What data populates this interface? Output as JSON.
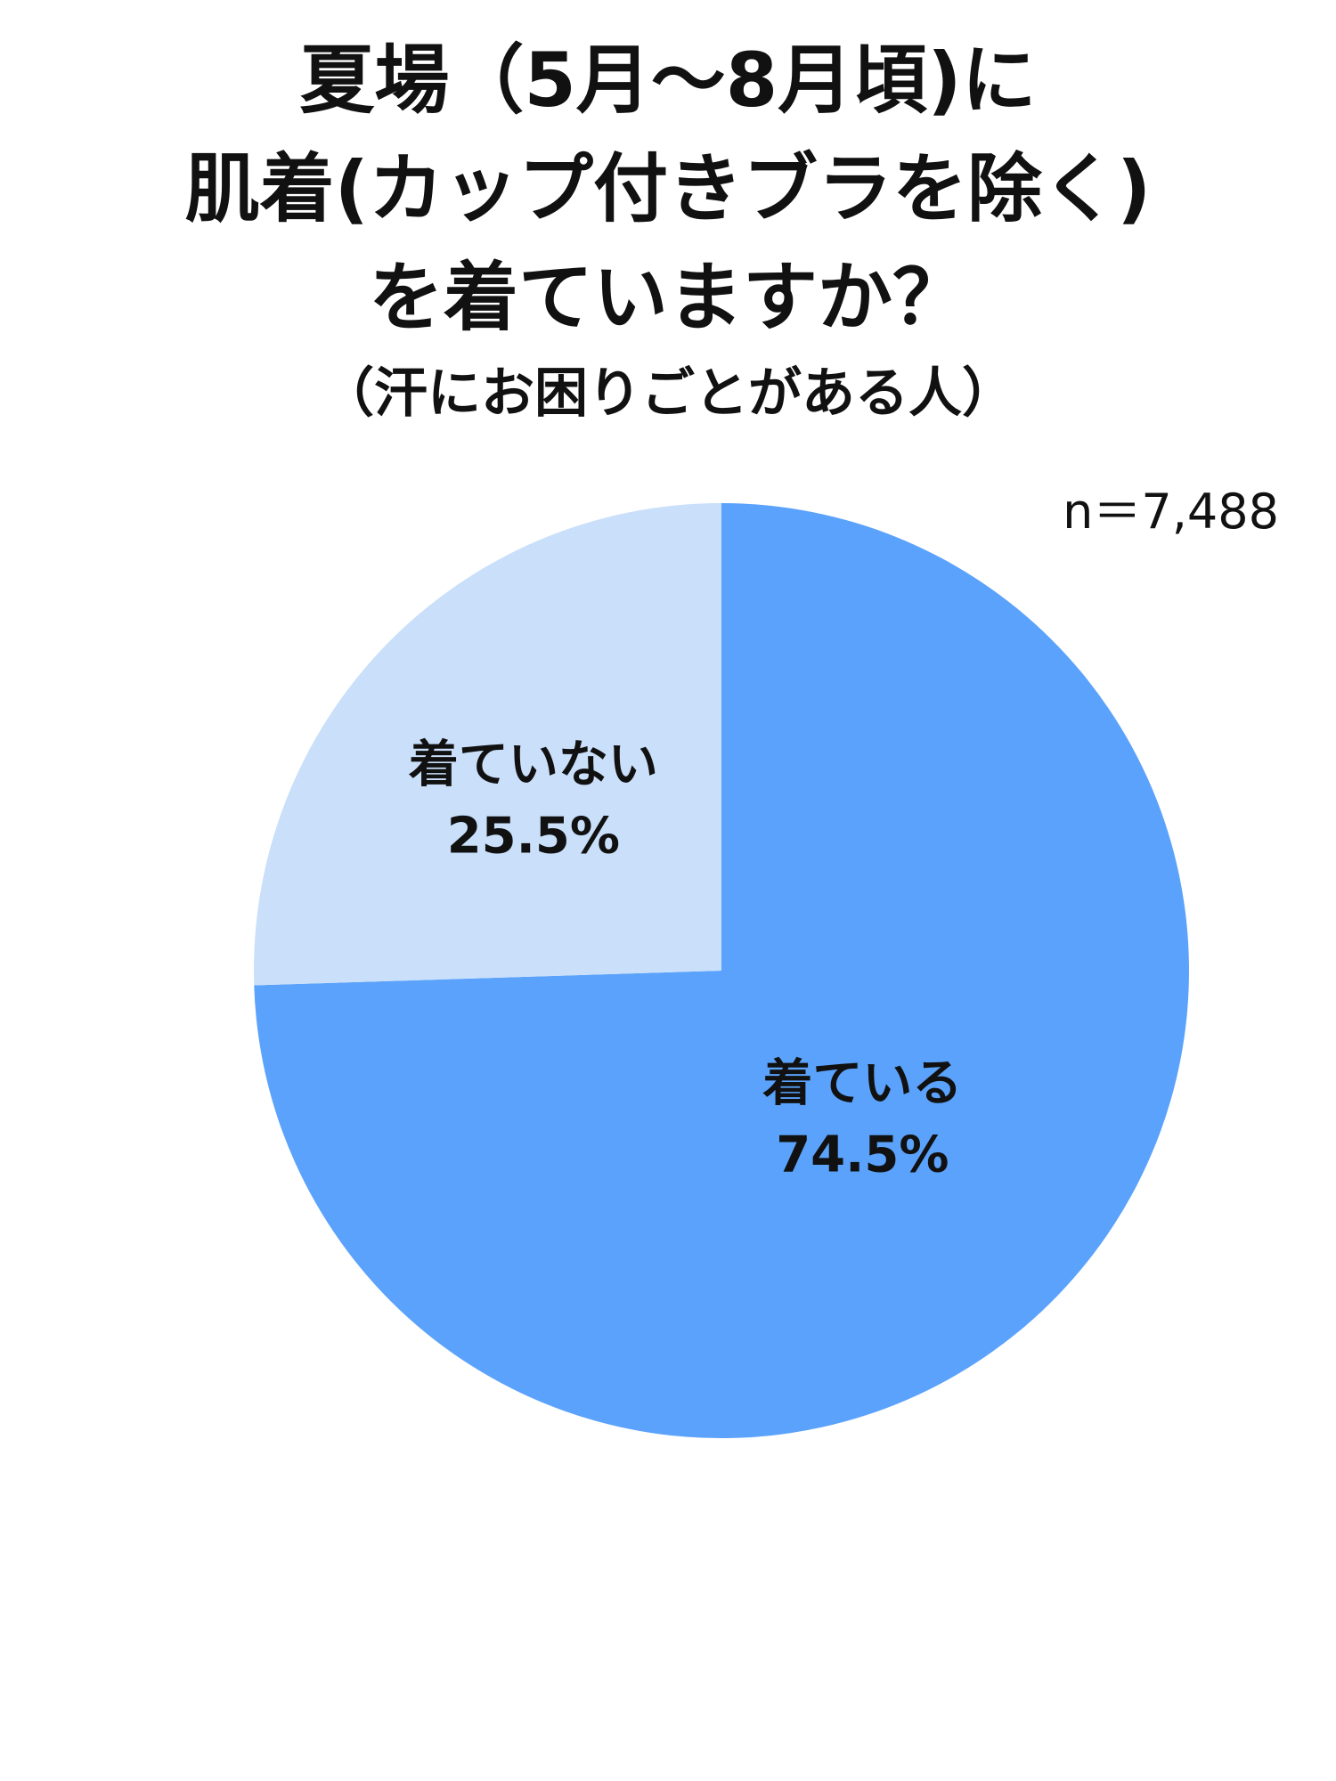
{
  "title_lines": [
    "夏場（5月〜8月頃)に",
    "肌着(カップ付きブラを除く)",
    "を着ていますか？"
  ],
  "subtitle": "（汗にお困りごとがある人）",
  "sample_size": "n＝7,488",
  "chart_data": {
    "type": "pie",
    "title": "夏場（5月〜8月頃)に 肌着(カップ付きブラを除く) を着ていますか？",
    "subtitle": "（汗にお困りごとがある人）",
    "n": 7488,
    "start_angle_deg": 0,
    "direction": "clockwise",
    "slices": [
      {
        "label": "着ている",
        "value": 74.5,
        "value_label": "74.5%",
        "color": "#5aa2fb"
      },
      {
        "label": "着ていない",
        "value": 25.5,
        "value_label": "25.5%",
        "color": "#c9dffa"
      }
    ],
    "legend": "none"
  }
}
